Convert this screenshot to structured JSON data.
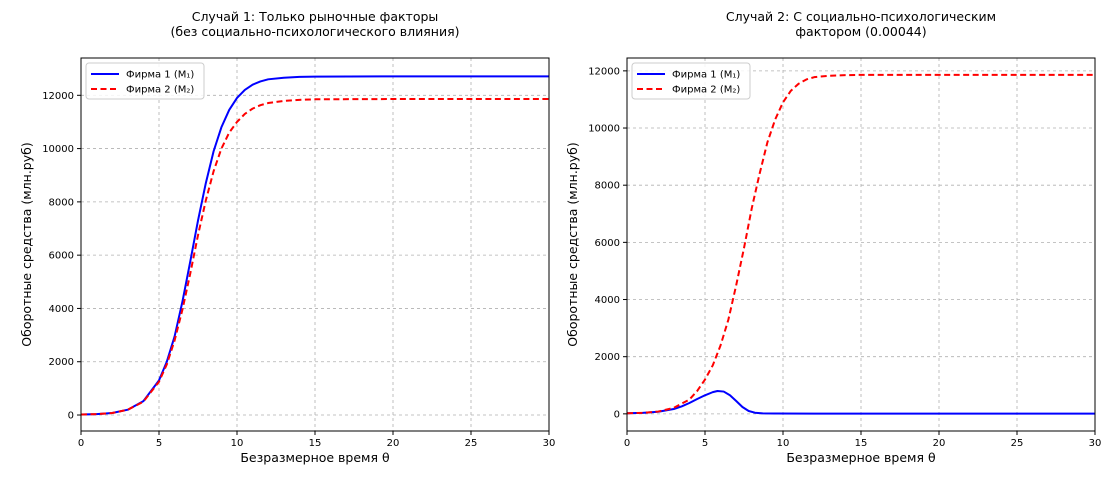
{
  "chart_data": [
    {
      "type": "line",
      "title": "Случай 1: Только рыночные факторы",
      "subtitle": "(без социально-психологического влияния)",
      "xlabel": "Безразмерное время θ",
      "ylabel": "Оборотные средства (млн.руб)",
      "xlim": [
        0,
        30
      ],
      "ylim": [
        -600,
        13400
      ],
      "xticks": [
        0,
        5,
        10,
        15,
        20,
        25,
        30
      ],
      "yticks": [
        0,
        2000,
        4000,
        6000,
        8000,
        10000,
        12000
      ],
      "grid": true,
      "legend_position": "top-left",
      "series": [
        {
          "name": "Фирма 1 (M₁)",
          "color": "#0000ff",
          "style": "solid",
          "points": [
            [
              0,
              20
            ],
            [
              1,
              35
            ],
            [
              2,
              75
            ],
            [
              3,
              200
            ],
            [
              4,
              520
            ],
            [
              5,
              1300
            ],
            [
              5.5,
              2000
            ],
            [
              6,
              2950
            ],
            [
              6.5,
              4250
            ],
            [
              7,
              5750
            ],
            [
              7.5,
              7300
            ],
            [
              8,
              8700
            ],
            [
              8.5,
              9900
            ],
            [
              9,
              10800
            ],
            [
              9.5,
              11450
            ],
            [
              10,
              11900
            ],
            [
              10.5,
              12200
            ],
            [
              11,
              12400
            ],
            [
              11.5,
              12520
            ],
            [
              12,
              12600
            ],
            [
              13,
              12660
            ],
            [
              14,
              12690
            ],
            [
              15,
              12700
            ],
            [
              20,
              12710
            ],
            [
              25,
              12710
            ],
            [
              30,
              12710
            ]
          ]
        },
        {
          "name": "Фирма 2 (M₂)",
          "color": "#ff0000",
          "style": "dashed",
          "points": [
            [
              0,
              20
            ],
            [
              1,
              35
            ],
            [
              2,
              75
            ],
            [
              3,
              200
            ],
            [
              4,
              500
            ],
            [
              5,
              1250
            ],
            [
              5.5,
              1900
            ],
            [
              6,
              2800
            ],
            [
              6.5,
              3950
            ],
            [
              7,
              5300
            ],
            [
              7.5,
              6750
            ],
            [
              8,
              8050
            ],
            [
              8.5,
              9150
            ],
            [
              9,
              10000
            ],
            [
              9.5,
              10600
            ],
            [
              10,
              11000
            ],
            [
              10.5,
              11300
            ],
            [
              11,
              11500
            ],
            [
              11.5,
              11630
            ],
            [
              12,
              11710
            ],
            [
              13,
              11790
            ],
            [
              14,
              11830
            ],
            [
              15,
              11850
            ],
            [
              20,
              11860
            ],
            [
              25,
              11860
            ],
            [
              30,
              11860
            ]
          ]
        }
      ]
    },
    {
      "type": "line",
      "title": "Случай 2: С социально-психологическим",
      "subtitle": "фактором (0.00044)",
      "xlabel": "Безразмерное время θ",
      "ylabel": "Оборотные средства (млн.руб)",
      "xlim": [
        0,
        30
      ],
      "ylim": [
        -600,
        12450
      ],
      "xticks": [
        0,
        5,
        10,
        15,
        20,
        25,
        30
      ],
      "yticks": [
        0,
        2000,
        4000,
        6000,
        8000,
        10000,
        12000
      ],
      "grid": true,
      "legend_position": "top-left",
      "series": [
        {
          "name": "Фирма 1 (M₁)",
          "color": "#0000ff",
          "style": "solid",
          "points": [
            [
              0,
              20
            ],
            [
              1,
              35
            ],
            [
              2,
              75
            ],
            [
              3,
              170
            ],
            [
              3.5,
              260
            ],
            [
              4,
              380
            ],
            [
              4.5,
              520
            ],
            [
              5,
              650
            ],
            [
              5.5,
              760
            ],
            [
              5.8,
              800
            ],
            [
              6.2,
              780
            ],
            [
              6.6,
              650
            ],
            [
              7,
              450
            ],
            [
              7.4,
              240
            ],
            [
              7.8,
              100
            ],
            [
              8.2,
              40
            ],
            [
              8.7,
              15
            ],
            [
              9.5,
              10
            ],
            [
              12,
              8
            ],
            [
              20,
              8
            ],
            [
              30,
              8
            ]
          ]
        },
        {
          "name": "Фирма 2 (M₂)",
          "color": "#ff0000",
          "style": "dashed",
          "points": [
            [
              0,
              20
            ],
            [
              1,
              35
            ],
            [
              2,
              80
            ],
            [
              3,
              210
            ],
            [
              4,
              500
            ],
            [
              4.5,
              800
            ],
            [
              5,
              1200
            ],
            [
              5.5,
              1700
            ],
            [
              6,
              2400
            ],
            [
              6.5,
              3300
            ],
            [
              7,
              4500
            ],
            [
              7.5,
              5800
            ],
            [
              8,
              7200
            ],
            [
              8.5,
              8400
            ],
            [
              9,
              9500
            ],
            [
              9.5,
              10300
            ],
            [
              10,
              10900
            ],
            [
              10.5,
              11300
            ],
            [
              11,
              11550
            ],
            [
              11.5,
              11700
            ],
            [
              12,
              11780
            ],
            [
              13,
              11830
            ],
            [
              14,
              11850
            ],
            [
              15,
              11860
            ],
            [
              20,
              11860
            ],
            [
              25,
              11860
            ],
            [
              30,
              11860
            ]
          ]
        }
      ]
    }
  ]
}
